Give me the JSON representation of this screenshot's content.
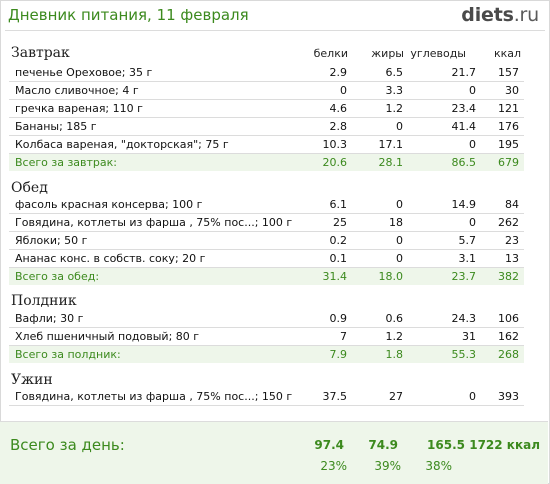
{
  "header": {
    "title": "Дневник питания, 11 февраля",
    "logo_main": "diets",
    "logo_tld": ".ru"
  },
  "columns": {
    "protein": "белки",
    "fat": "жиры",
    "carbs": "углеводы",
    "kcal": "ккал"
  },
  "meals": [
    {
      "title": "Завтрак",
      "items": [
        {
          "name": "печенье Ореховое; 35 г",
          "b": "2.9",
          "f": "6.5",
          "c": "21.7",
          "k": "157"
        },
        {
          "name": "Масло сливочное; 4 г",
          "b": "0",
          "f": "3.3",
          "c": "0",
          "k": "30"
        },
        {
          "name": "гречка вареная; 110 г",
          "b": "4.6",
          "f": "1.2",
          "c": "23.4",
          "k": "121"
        },
        {
          "name": "Бананы; 185 г",
          "b": "2.8",
          "f": "0",
          "c": "41.4",
          "k": "176"
        },
        {
          "name": "Колбаса вареная, \"докторская\"; 75 г",
          "b": "10.3",
          "f": "17.1",
          "c": "0",
          "k": "195"
        }
      ],
      "total": {
        "name": "Всего за завтрак:",
        "b": "20.6",
        "f": "28.1",
        "c": "86.5",
        "k": "679"
      }
    },
    {
      "title": "Обед",
      "items": [
        {
          "name": "фасоль красная консерва; 100 г",
          "b": "6.1",
          "f": "0",
          "c": "14.9",
          "k": "84"
        },
        {
          "name": "Говядина, котлеты из фарша , 75% пос...; 100 г",
          "b": "25",
          "f": "18",
          "c": "0",
          "k": "262"
        },
        {
          "name": "Яблоки; 50 г",
          "b": "0.2",
          "f": "0",
          "c": "5.7",
          "k": "23"
        },
        {
          "name": "Ананас конс. в собств. соку; 20 г",
          "b": "0.1",
          "f": "0",
          "c": "3.1",
          "k": "13"
        }
      ],
      "total": {
        "name": "Всего за обед:",
        "b": "31.4",
        "f": "18.0",
        "c": "23.7",
        "k": "382"
      }
    },
    {
      "title": "Полдник",
      "items": [
        {
          "name": "Вафли; 30 г",
          "b": "0.9",
          "f": "0.6",
          "c": "24.3",
          "k": "106"
        },
        {
          "name": "Хлеб пшеничный подовый; 80 г",
          "b": "7",
          "f": "1.2",
          "c": "31",
          "k": "162"
        }
      ],
      "total": {
        "name": "Всего за полдник:",
        "b": "7.9",
        "f": "1.8",
        "c": "55.3",
        "k": "268"
      }
    },
    {
      "title": "Ужин",
      "items": [
        {
          "name": "Говядина, котлеты из фарша , 75% пос...; 150 г",
          "b": "37.5",
          "f": "27",
          "c": "0",
          "k": "393"
        }
      ]
    }
  ],
  "day_total": {
    "label": "Всего за день:",
    "protein": "97.4",
    "fat": "74.9",
    "carbs": "165.5",
    "kcal": "1722 ккал",
    "protein_pct": "23%",
    "fat_pct": "39%",
    "carbs_pct": "38%"
  }
}
